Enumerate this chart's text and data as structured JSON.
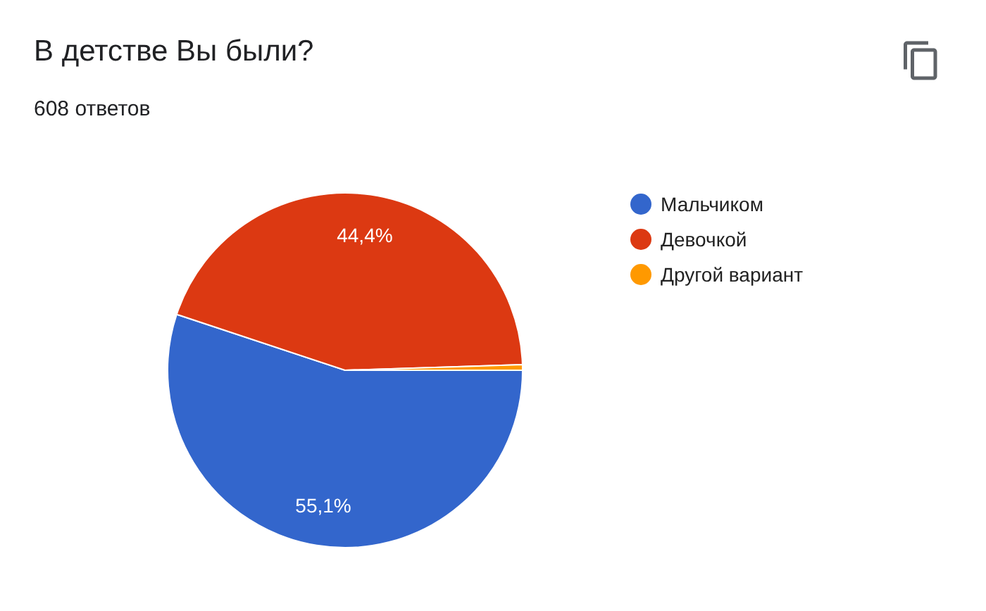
{
  "chart_data": {
    "type": "pie",
    "title": "В детстве Вы были?",
    "subtitle": "608 ответов",
    "categories": [
      "Мальчиком",
      "Девочкой",
      "Другой вариант"
    ],
    "values": [
      55.1,
      44.4,
      0.5
    ],
    "colors": [
      "#3366cc",
      "#dc3912",
      "#ff9900"
    ],
    "value_labels": [
      "55,1%",
      "44,4%",
      null
    ],
    "legend": "right"
  }
}
